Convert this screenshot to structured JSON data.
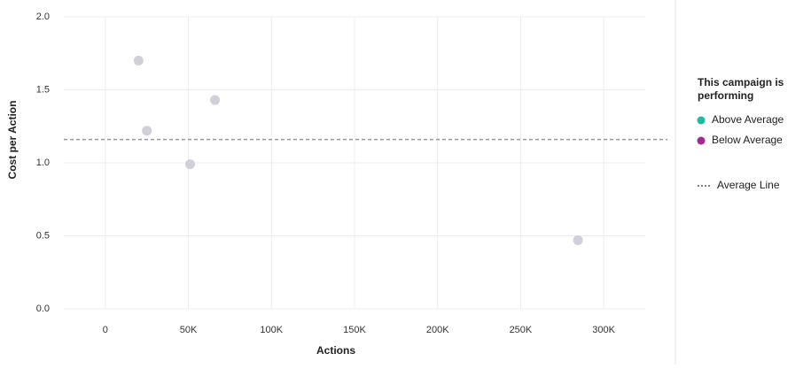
{
  "chart_data": {
    "type": "scatter",
    "x_label": "Actions",
    "y_label": "Cost per Action",
    "x": [
      20000,
      25000,
      66000,
      51000,
      284500
    ],
    "y": [
      1.7,
      1.22,
      1.43,
      0.99,
      0.47
    ],
    "color": "#cfd0d8",
    "average": 1.16,
    "average_color": "#999999",
    "xlim": [
      -25000,
      325000
    ],
    "xticks": [
      0,
      {
        "value": 50000,
        "label": "50K"
      },
      {
        "value": 100000,
        "label": "100K"
      },
      {
        "value": 150000,
        "label": "150K"
      },
      {
        "value": 200000,
        "label": "200K"
      },
      {
        "value": 250000,
        "label": "250K"
      },
      {
        "value": 300000,
        "label": "300K"
      }
    ],
    "ylim": [
      0,
      2
    ],
    "yticks": [
      {
        "value": 0,
        "label": "0.0"
      },
      0.5,
      {
        "value": 1,
        "label": "1.0"
      },
      1.5,
      {
        "value": 2,
        "label": "2.0"
      }
    ],
    "grid": true,
    "legend": {
      "title": [
        "This campaign is",
        "performing"
      ],
      "items": [
        {
          "name": "Above Average",
          "color": "#1fb8a0"
        },
        {
          "name": "Below Average",
          "color": "#a3288f"
        }
      ],
      "average_label": "Average Line"
    }
  }
}
